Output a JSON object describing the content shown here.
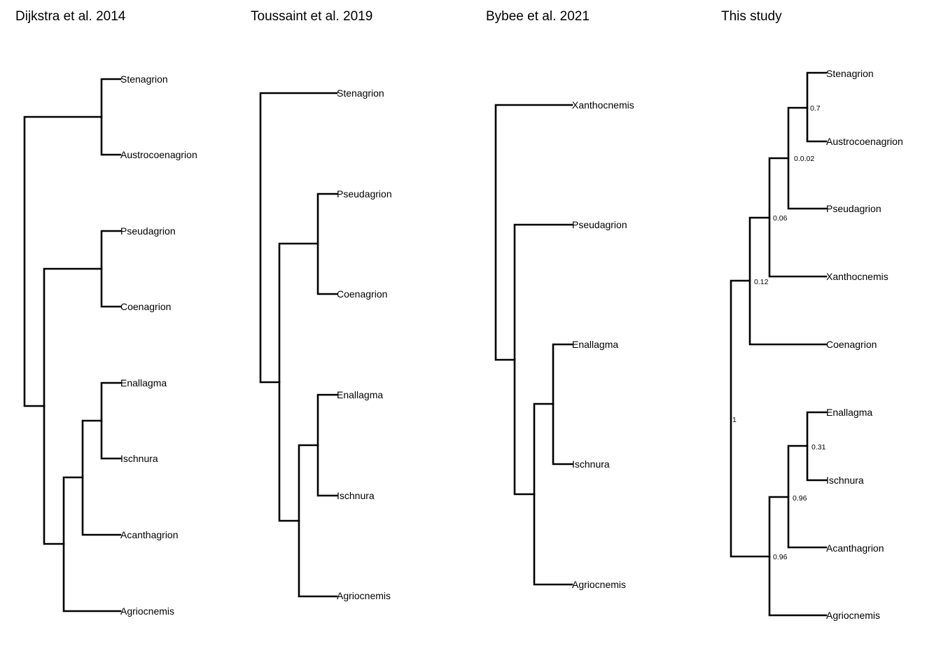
{
  "panels": [
    {
      "title": "Dijkstra et al. 2014",
      "taxa": [
        "Stenagrion",
        "Austrocoenagrion",
        "Pseudagrion",
        "Coenagrion",
        "Enallagma",
        "Ischnura",
        "Acanthagrion",
        "Agriocnemis"
      ],
      "tree": [
        [
          [
            "Stenagrion",
            "Austrocoenagrion"
          ]
        ],
        [
          [
            [
              "Pseudagrion",
              "Coenagrion"
            ]
          ],
          [
            [
              [
                [
                  "Enallagma",
                  "Ischnura"
                ]
              ],
              "Acanthagrion"
            ],
            "Agriocnemis"
          ]
        ]
      ]
    },
    {
      "title": "Toussaint et al. 2019",
      "taxa": [
        "Stenagrion",
        "Pseudagrion",
        "Coenagrion",
        "Enallagma",
        "Ischnura",
        "Agriocnemis"
      ],
      "tree": [
        "Stenagrion",
        [
          [
            "Pseudagrion",
            "Coenagrion"
          ],
          [
            [
              "Enallagma",
              "Ischnura"
            ],
            "Agriocnemis"
          ]
        ]
      ]
    },
    {
      "title": "Bybee et al. 2021",
      "taxa": [
        "Xanthocnemis",
        "Pseudagrion",
        "Enallagma",
        "Ischnura",
        "Agriocnemis"
      ],
      "tree": [
        "Xanthocnemis",
        [
          "Pseudagrion",
          [
            [
              "Enallagma",
              "Ischnura"
            ],
            "Agriocnemis"
          ]
        ]
      ]
    },
    {
      "title": "This study",
      "taxa": [
        "Stenagrion",
        "Austrocoenagrion",
        "Pseudagrion",
        "Xanthocnemis",
        "Coenagrion",
        "Enallagma",
        "Ischnura",
        "Acanthagrion",
        "Agriocnemis"
      ],
      "node_support": [
        "1",
        "0.12",
        "0.06",
        "0.0.02",
        "0.7",
        "0.96",
        "0.96",
        "0.31"
      ]
    }
  ]
}
